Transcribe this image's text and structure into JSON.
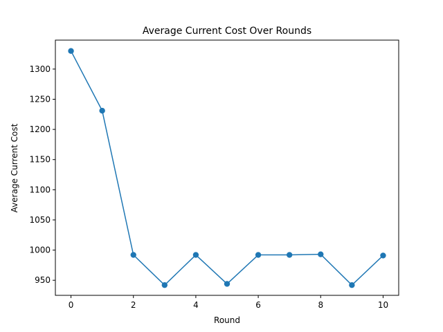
{
  "chart_data": {
    "type": "line",
    "title": "Average Current Cost Over Rounds",
    "xlabel": "Round",
    "ylabel": "Average Current Cost",
    "x": [
      0,
      1,
      2,
      3,
      4,
      5,
      6,
      7,
      8,
      9,
      10
    ],
    "series": [
      {
        "values": [
          1330,
          1231,
          992,
          942,
          992,
          944,
          992,
          992,
          993,
          942,
          991
        ],
        "color": "#1f77b4",
        "marker": "circle"
      }
    ],
    "xlim": [
      -0.5,
      10.5
    ],
    "ylim": [
      925,
      1348
    ],
    "xticks": [
      0,
      2,
      4,
      6,
      8,
      10
    ],
    "yticks": [
      950,
      1000,
      1050,
      1100,
      1150,
      1200,
      1250,
      1300
    ],
    "grid": false,
    "legend": "none"
  }
}
